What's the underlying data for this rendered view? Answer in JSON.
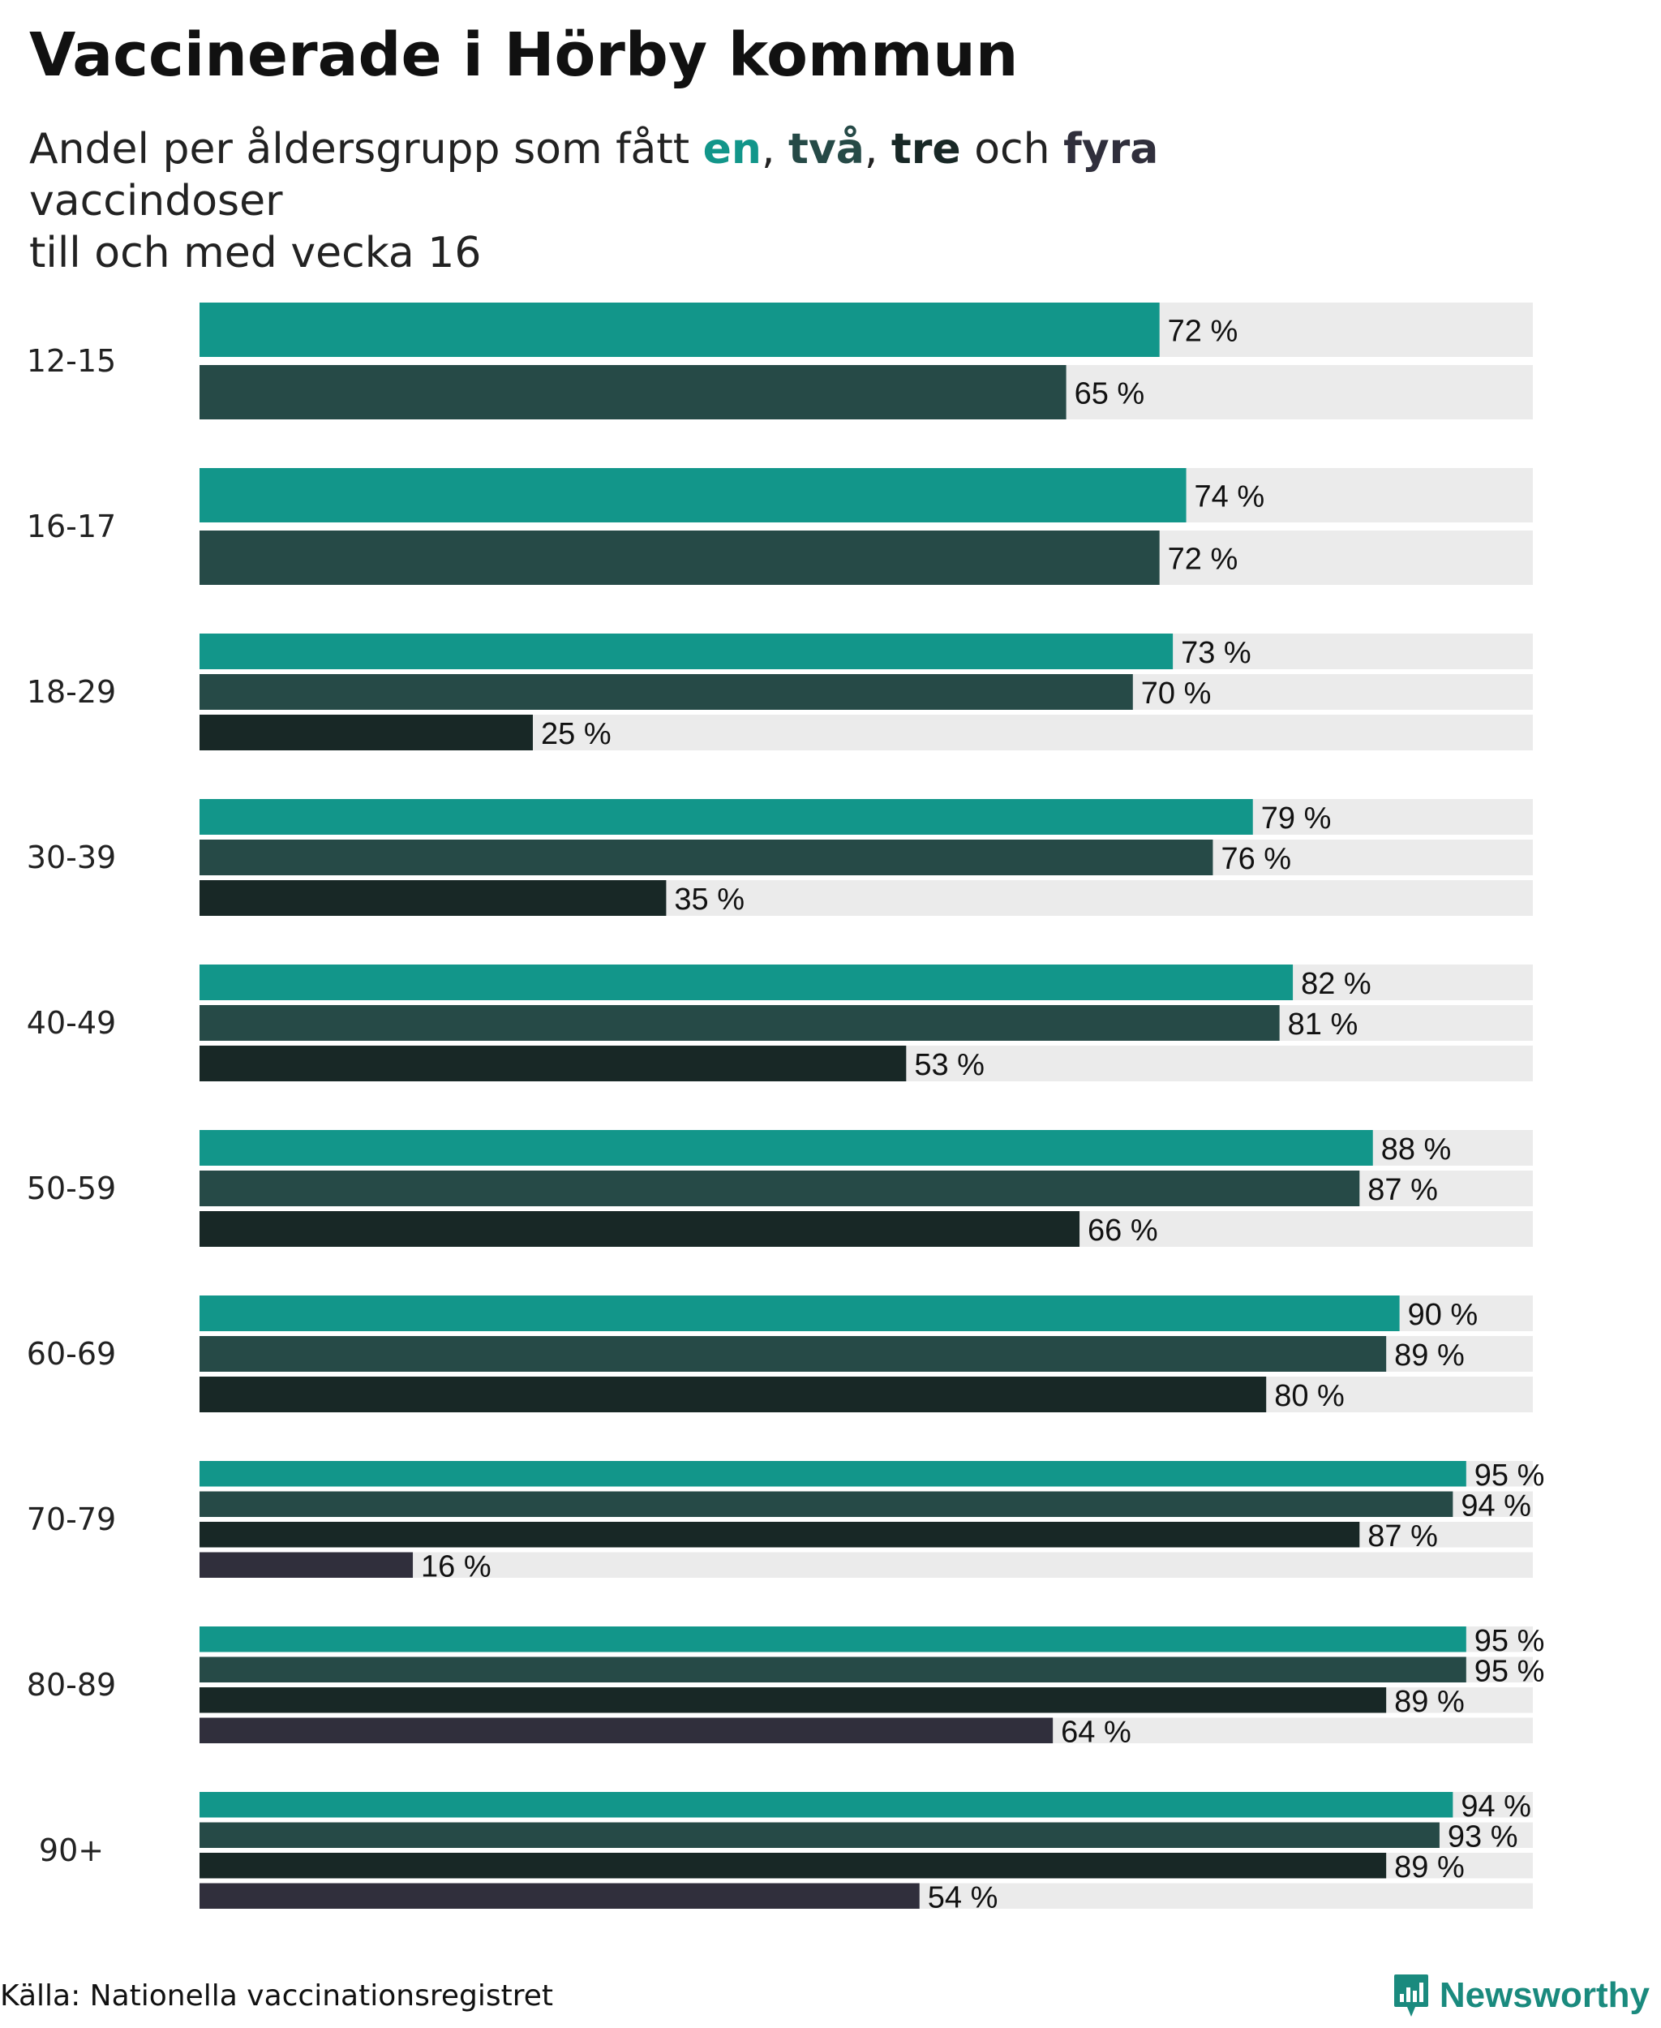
{
  "title": "Vaccinerade i Hörby kommun",
  "subtitle": {
    "prefix": "Andel per åldersgrupp som fått ",
    "kw1": "en",
    "sep1": ", ",
    "kw2": "två",
    "sep2": ", ",
    "kw3": "tre",
    "mid": " och ",
    "kw4": "fyra",
    "suffix": " vaccindoser",
    "line2": "till och med vecka 16"
  },
  "source": "Källa: Nationella vaccinationsregistret",
  "brand": "Newsworthy",
  "colors": {
    "dose1": "#12968a",
    "dose2": "#264a47",
    "dose3": "#182826",
    "dose4": "#302f3c",
    "track": "#ebebeb",
    "brand": "#1a8a7e"
  },
  "chart_data": {
    "type": "bar",
    "orientation": "horizontal",
    "title": "Vaccinerade i Hörby kommun",
    "xlim": [
      0,
      100
    ],
    "unit": "%",
    "categories": [
      "12-15",
      "16-17",
      "18-29",
      "30-39",
      "40-49",
      "50-59",
      "60-69",
      "70-79",
      "80-89",
      "90+"
    ],
    "series": [
      {
        "name": "en",
        "values": [
          72,
          74,
          73,
          79,
          82,
          88,
          90,
          95,
          95,
          94
        ]
      },
      {
        "name": "två",
        "values": [
          65,
          72,
          70,
          76,
          81,
          87,
          89,
          94,
          95,
          93
        ]
      },
      {
        "name": "tre",
        "values": [
          null,
          null,
          25,
          35,
          53,
          66,
          80,
          87,
          89,
          89
        ]
      },
      {
        "name": "fyra",
        "values": [
          null,
          null,
          null,
          null,
          null,
          null,
          null,
          16,
          64,
          54
        ]
      }
    ],
    "value_labels": [
      [
        "72 %",
        "65 %"
      ],
      [
        "74 %",
        "72 %"
      ],
      [
        "73 %",
        "70 %",
        "25 %"
      ],
      [
        "79 %",
        "76 %",
        "35 %"
      ],
      [
        "82 %",
        "81 %",
        "53 %"
      ],
      [
        "88 %",
        "87 %",
        "66 %"
      ],
      [
        "90 %",
        "89 %",
        "80 %"
      ],
      [
        "95 %",
        "94 %",
        "87 %",
        "16 %"
      ],
      [
        "95 %",
        "95 %",
        "89 %",
        "64 %"
      ],
      [
        "94 %",
        "93 %",
        "89 %",
        "54 %"
      ]
    ]
  }
}
